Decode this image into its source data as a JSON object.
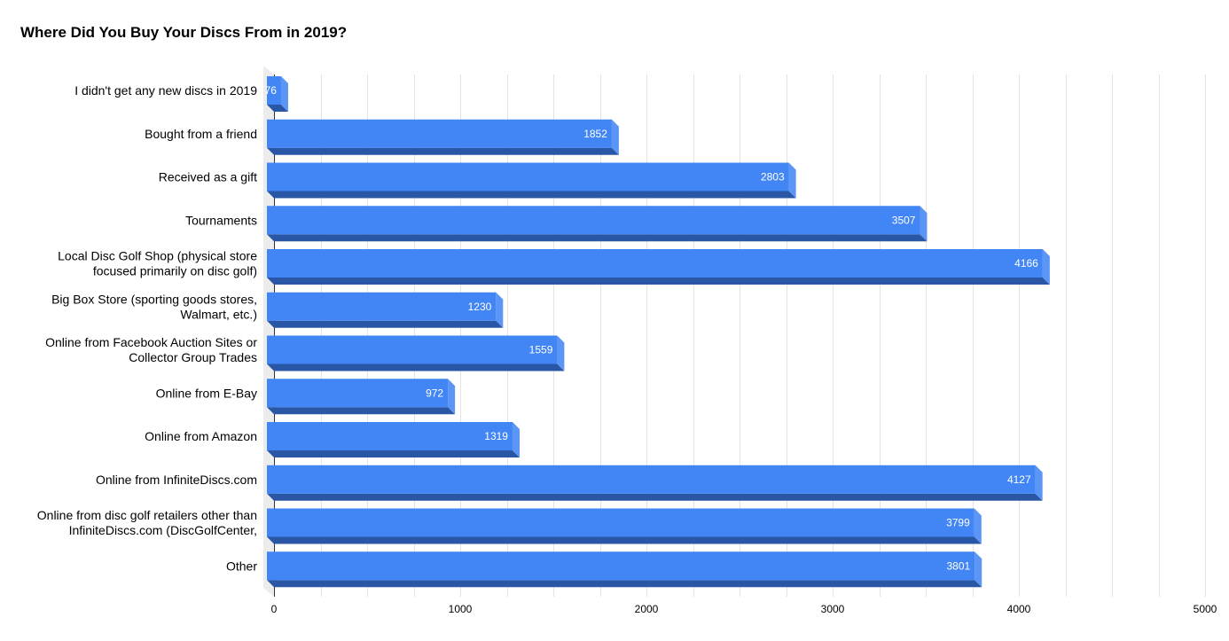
{
  "chart_data": {
    "type": "bar",
    "orientation": "horizontal",
    "style": "3d",
    "title": "Where Did You Buy Your Discs From in 2019?",
    "categories": [
      [
        "I didn't get any new discs in 2019"
      ],
      [
        "Bought from a friend"
      ],
      [
        "Received as a gift"
      ],
      [
        "Tournaments"
      ],
      [
        "Local Disc Golf Shop (physical store",
        "focused primarily on disc golf)"
      ],
      [
        "Big Box Store (sporting goods stores,",
        "Walmart, etc.)"
      ],
      [
        "Online from Facebook Auction Sites or",
        "Collector Group Trades"
      ],
      [
        "Online from E-Bay"
      ],
      [
        "Online from Amazon"
      ],
      [
        "Online from InfiniteDiscs.com"
      ],
      [
        "Online from disc golf retailers other than",
        "InfiniteDiscs.com (DiscGolfCenter,"
      ],
      [
        "Other"
      ]
    ],
    "values": [
      76,
      1852,
      2803,
      3507,
      4166,
      1230,
      1559,
      972,
      1319,
      4127,
      3799,
      3801
    ],
    "data_labels": [
      "76",
      "1852",
      "2803",
      "3507",
      "4166",
      "1230",
      "1559",
      "972",
      "1319",
      "4127",
      "3799",
      "3801"
    ],
    "x_ticks": [
      "0",
      "1000",
      "2000",
      "3000",
      "4000",
      "5000"
    ],
    "xlim": [
      0,
      5000
    ],
    "grid": true,
    "legend": "none",
    "colors": {
      "bar_front": "#4285f4",
      "bar_side": "#5b95f5",
      "bar_bottom": "#2a56a6",
      "grid": "#e3e3e3",
      "axis": "#333333",
      "wall": "#ececec",
      "bar_label": "#ffffff",
      "text": "#000000"
    }
  }
}
